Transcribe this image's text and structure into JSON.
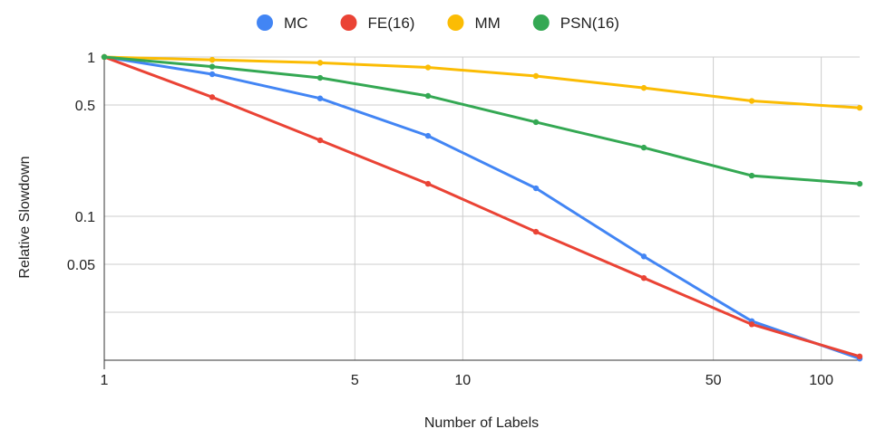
{
  "chart_data": {
    "type": "line",
    "title": "",
    "xlabel": "Number of Labels",
    "ylabel": "Relative Slowdown",
    "xscale": "log",
    "yscale": "log",
    "xlim": [
      1,
      128
    ],
    "ylim": [
      0.0125,
      1.0
    ],
    "x_ticks": [
      1,
      5,
      10,
      50,
      100
    ],
    "x_tick_labels": [
      "1",
      "5",
      "10",
      "50",
      "100"
    ],
    "y_ticks": [
      1,
      0.5,
      0.1,
      0.05
    ],
    "y_tick_labels": [
      "1",
      "0.5",
      "0.1",
      "0.05"
    ],
    "x_gridlines": [
      1,
      5,
      10,
      50,
      100
    ],
    "y_gridlines": [
      1,
      0.5,
      0.1,
      0.05,
      0.025
    ],
    "legend_position": "top",
    "x": [
      1,
      2,
      4,
      8,
      16,
      32,
      64,
      128
    ],
    "series": [
      {
        "name": "MC",
        "color": "#4285F4",
        "values": [
          1.0,
          0.78,
          0.55,
          0.32,
          0.15,
          0.056,
          0.022,
          0.0128
        ]
      },
      {
        "name": "FE(16)",
        "color": "#EA4335",
        "values": [
          1.0,
          0.56,
          0.3,
          0.16,
          0.08,
          0.041,
          0.021,
          0.0132
        ]
      },
      {
        "name": "MM",
        "color": "#FBBC04",
        "values": [
          1.0,
          0.96,
          0.92,
          0.86,
          0.76,
          0.64,
          0.53,
          0.48
        ]
      },
      {
        "name": "PSN(16)",
        "color": "#34A853",
        "values": [
          1.0,
          0.87,
          0.74,
          0.57,
          0.39,
          0.27,
          0.18,
          0.16
        ]
      }
    ]
  }
}
